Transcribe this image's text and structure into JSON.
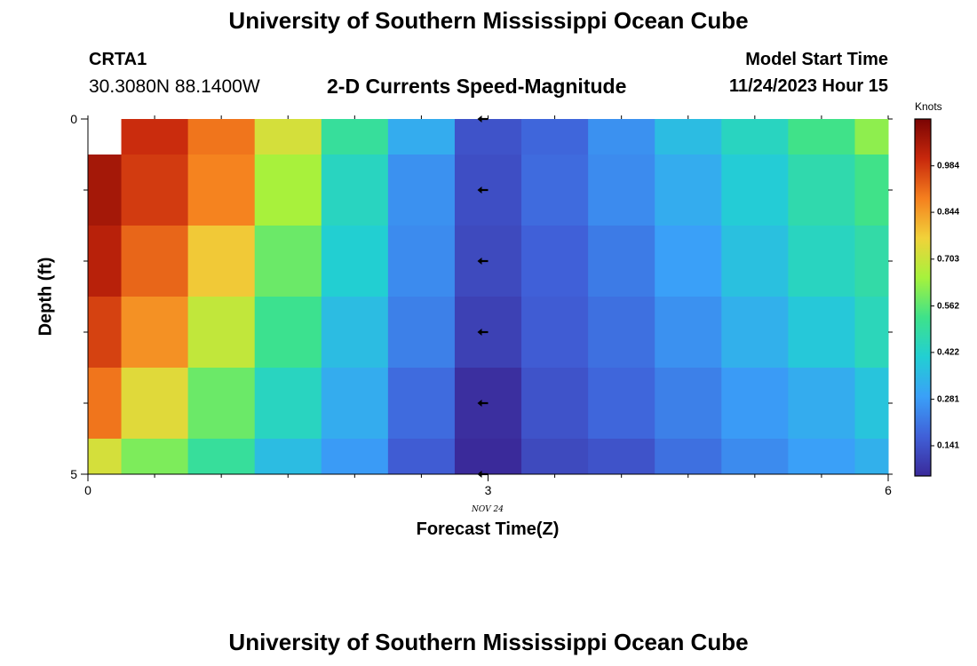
{
  "header": {
    "title": "University of Southern Mississippi Ocean Cube",
    "station": "CRTA1",
    "coordinates": "30.3080N  88.1400W",
    "chart_title": "2-D Currents Speed-Magnitude",
    "model_start_label": "Model Start Time",
    "model_start_value": "11/24/2023 Hour 15"
  },
  "footer": {
    "title": "University of Southern Mississippi Ocean Cube"
  },
  "colorbar": {
    "unit": "Knots",
    "ticks": [
      "0.984",
      "0.844",
      "0.703",
      "0.562",
      "0.422",
      "0.281",
      "0.141"
    ],
    "range": [
      0.05,
      1.125
    ],
    "colors": [
      "#3a2a9a",
      "#4060d8",
      "#3aa0f8",
      "#22cfd3",
      "#3ee28a",
      "#a6f23c",
      "#f1d23a",
      "#f57f1e",
      "#c8280c",
      "#7a0403"
    ]
  },
  "chart_data": {
    "type": "heatmap",
    "title": "2-D Currents Speed-Magnitude",
    "xlabel": "Forecast Time(Z)",
    "x_sublabel": "NOV 24",
    "ylabel": "Depth (ft)",
    "x_ticks": [
      "0",
      "3",
      "6"
    ],
    "y_ticks": [
      "0",
      "5"
    ],
    "xlim": [
      0,
      6
    ],
    "ylim": [
      0,
      5
    ],
    "x_centers": [
      0,
      0.5,
      1,
      1.5,
      2,
      2.5,
      3,
      3.5,
      4,
      4.5,
      5,
      5.5,
      6
    ],
    "depth_rows": [
      0,
      1,
      2,
      3,
      4,
      5
    ],
    "values": [
      [
        null,
        1.0,
        0.9,
        0.72,
        0.5,
        0.32,
        0.14,
        0.18,
        0.26,
        0.36,
        0.44,
        0.53,
        0.62
      ],
      [
        1.06,
        0.98,
        0.88,
        0.65,
        0.44,
        0.26,
        0.13,
        0.19,
        0.25,
        0.32,
        0.4,
        0.47,
        0.53
      ],
      [
        1.03,
        0.92,
        0.78,
        0.58,
        0.41,
        0.25,
        0.12,
        0.17,
        0.22,
        0.29,
        0.37,
        0.44,
        0.48
      ],
      [
        0.97,
        0.86,
        0.69,
        0.52,
        0.36,
        0.23,
        0.1,
        0.16,
        0.2,
        0.26,
        0.33,
        0.39,
        0.45
      ],
      [
        0.9,
        0.74,
        0.58,
        0.44,
        0.32,
        0.19,
        0.06,
        0.14,
        0.18,
        0.23,
        0.28,
        0.32,
        0.38
      ],
      [
        0.72,
        0.6,
        0.5,
        0.36,
        0.28,
        0.16,
        0.01,
        0.12,
        0.14,
        0.2,
        0.25,
        0.29,
        0.33
      ]
    ],
    "arrows": [
      {
        "x": 3,
        "depth": 0,
        "direction": "west"
      },
      {
        "x": 3,
        "depth": 1,
        "direction": "west"
      },
      {
        "x": 3,
        "depth": 2,
        "direction": "west"
      },
      {
        "x": 3,
        "depth": 3,
        "direction": "west"
      },
      {
        "x": 3,
        "depth": 4,
        "direction": "west"
      },
      {
        "x": 3,
        "depth": 5,
        "direction": "west"
      }
    ]
  }
}
